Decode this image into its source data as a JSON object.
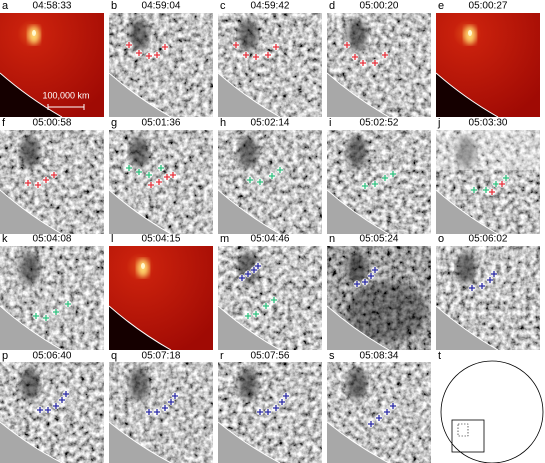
{
  "panels": [
    {
      "letter": "a",
      "time": "04:58:33"
    },
    {
      "letter": "b",
      "time": "04:59:04"
    },
    {
      "letter": "c",
      "time": "04:59:42"
    },
    {
      "letter": "d",
      "time": "05:00:20"
    },
    {
      "letter": "e",
      "time": "05:00:27"
    },
    {
      "letter": "f",
      "time": "05:00:58"
    },
    {
      "letter": "g",
      "time": "05:01:36"
    },
    {
      "letter": "h",
      "time": "05:02:14"
    },
    {
      "letter": "i",
      "time": "05:02:52"
    },
    {
      "letter": "j",
      "time": "05:03:30"
    },
    {
      "letter": "k",
      "time": "05:04:08"
    },
    {
      "letter": "l",
      "time": "05:04:15"
    },
    {
      "letter": "m",
      "time": "05:04:46"
    },
    {
      "letter": "n",
      "time": "05:05:24"
    },
    {
      "letter": "o",
      "time": "05:06:02"
    },
    {
      "letter": "p",
      "time": "05:06:40"
    },
    {
      "letter": "q",
      "time": "05:07:18"
    },
    {
      "letter": "r",
      "time": "05:07:56"
    },
    {
      "letter": "s",
      "time": "05:08:34"
    },
    {
      "letter": "t"
    }
  ],
  "scale_bar": "100,000 km"
}
